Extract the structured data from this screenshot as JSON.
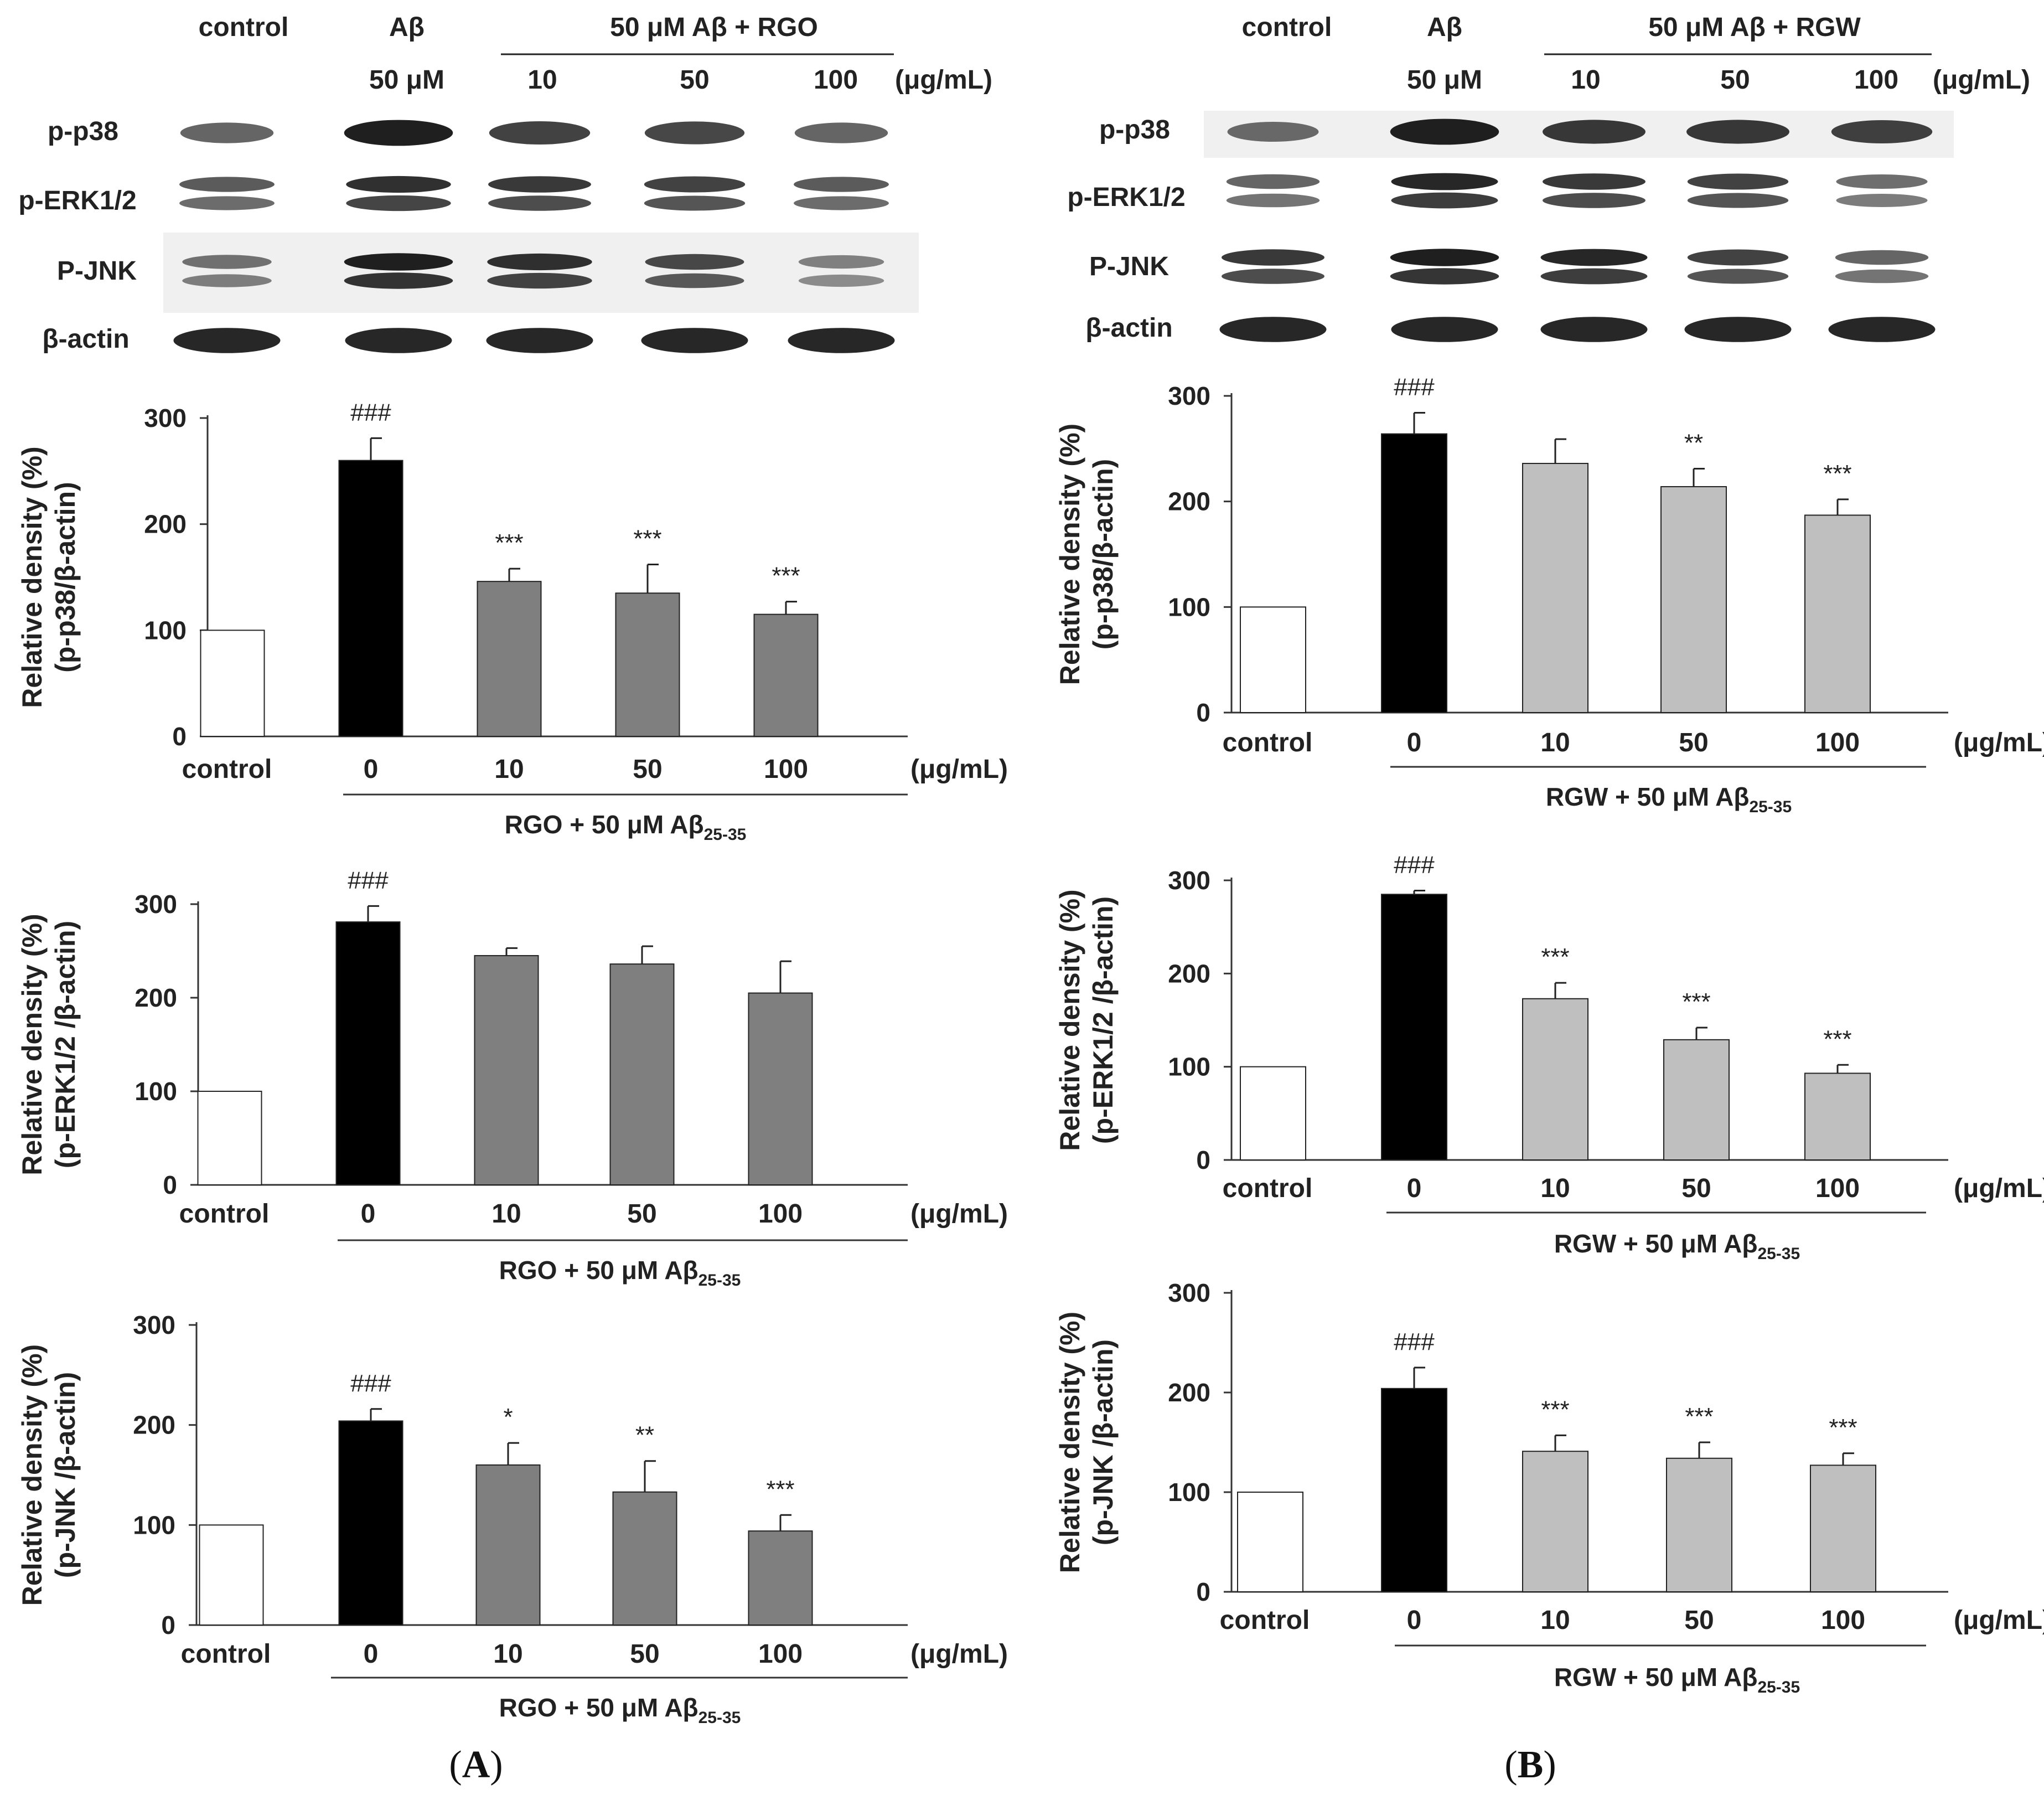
{
  "colors": {
    "control_fill": "#ffffff",
    "abeta_fill": "#000000",
    "rgo_fill": "#7f7f7f",
    "rgw_fill": "#bfbfbf",
    "bar_stroke": "#222222",
    "axis": "#333333",
    "blot_background": "#f0f0f0"
  },
  "panels": [
    {
      "id": "A",
      "label_letter": "A",
      "blot": {
        "header_control": "control",
        "header_abeta": "Aβ",
        "header_abeta_dose": "50 μM",
        "header_group": "50 μM  Aβ  + RGO",
        "header_doses": [
          "10",
          "50",
          "100"
        ],
        "header_unit": "(μg/mL)",
        "rows": [
          {
            "label": "p-p38",
            "intensity": [
              0.55,
              0.95,
              0.75,
              0.72,
              0.55
            ],
            "double": false,
            "shaded": false
          },
          {
            "label": "p-ERK1/2",
            "intensity": [
              0.6,
              0.85,
              0.8,
              0.75,
              0.6
            ],
            "double": true,
            "shaded": false
          },
          {
            "label": "P-JNK",
            "intensity": [
              0.45,
              0.95,
              0.85,
              0.7,
              0.35
            ],
            "double": true,
            "shaded": true
          },
          {
            "label": "β-actin",
            "intensity": [
              0.9,
              0.9,
              0.9,
              0.9,
              0.9
            ],
            "double": false,
            "shaded": false
          }
        ]
      }
    },
    {
      "id": "B",
      "label_letter": "B",
      "blot": {
        "header_control": "control",
        "header_abeta": "Aβ",
        "header_abeta_dose": "50 μM",
        "header_group": "50 μM  Aβ  + RGW",
        "header_doses": [
          "10",
          "50",
          "100"
        ],
        "header_unit": "(μg/mL)",
        "rows": [
          {
            "label": "p-p38",
            "intensity": [
              0.5,
              0.95,
              0.8,
              0.8,
              0.75
            ],
            "double": false,
            "shaded": true
          },
          {
            "label": "p-ERK1/2",
            "intensity": [
              0.55,
              0.9,
              0.8,
              0.75,
              0.5
            ],
            "double": true,
            "shaded": false
          },
          {
            "label": "P-JNK",
            "intensity": [
              0.8,
              0.95,
              0.9,
              0.75,
              0.55
            ],
            "double": true,
            "shaded": false
          },
          {
            "label": "β-actin",
            "intensity": [
              0.9,
              0.9,
              0.9,
              0.9,
              0.9
            ],
            "double": false,
            "shaded": false
          }
        ]
      }
    }
  ],
  "chart_data": [
    {
      "panel": "A",
      "type": "bar",
      "title": "",
      "ylabel_line1": "Relative density (%)",
      "ylabel_line2": "(p-p38/β-actin)",
      "categories": [
        "control",
        "0",
        "10",
        "50",
        "100"
      ],
      "unit_label": "(μg/mL)",
      "group_label": "RGO + 50 μM Aβ",
      "group_label_sub": "25-35",
      "values": [
        100,
        260,
        146,
        135,
        115
      ],
      "errors": [
        0,
        21,
        12,
        27,
        12
      ],
      "significance": [
        "",
        "###",
        "***",
        "***",
        "***"
      ],
      "ylim": [
        0,
        300
      ],
      "yticks": [
        0,
        100,
        200,
        300
      ],
      "treatment": "RGO"
    },
    {
      "panel": "A",
      "type": "bar",
      "title": "",
      "ylabel_line1": "Relative density (%)",
      "ylabel_line2": "(p-ERK1/2 /β-actin)",
      "categories": [
        "control",
        "0",
        "10",
        "50",
        "100"
      ],
      "unit_label": "(μg/mL)",
      "group_label": "RGO + 50 μM Aβ",
      "group_label_sub": "25-35",
      "values": [
        100,
        281,
        245,
        236,
        205
      ],
      "errors": [
        0,
        17,
        8,
        19,
        34
      ],
      "significance": [
        "",
        "###",
        "",
        "",
        ""
      ],
      "ylim": [
        0,
        300
      ],
      "yticks": [
        0,
        100,
        200,
        300
      ],
      "treatment": "RGO"
    },
    {
      "panel": "A",
      "type": "bar",
      "title": "",
      "ylabel_line1": "Relative density (%)",
      "ylabel_line2": "(p-JNK /β-actin)",
      "categories": [
        "control",
        "0",
        "10",
        "50",
        "100"
      ],
      "unit_label": "(μg/mL)",
      "group_label": "RGO + 50 μM Aβ",
      "group_label_sub": "25-35",
      "values": [
        100,
        204,
        160,
        133,
        94
      ],
      "errors": [
        0,
        12,
        22,
        31,
        16
      ],
      "significance": [
        "",
        "###",
        "*",
        "**",
        "***"
      ],
      "ylim": [
        0,
        300
      ],
      "yticks": [
        0,
        100,
        200,
        300
      ],
      "treatment": "RGO"
    },
    {
      "panel": "B",
      "type": "bar",
      "title": "",
      "ylabel_line1": "Relative density (%)",
      "ylabel_line2": "(p-p38/β-actin)",
      "categories": [
        "control",
        "0",
        "10",
        "50",
        "100"
      ],
      "unit_label": "(μg/mL)",
      "group_label": "RGW + 50 μM Aβ",
      "group_label_sub": "25-35",
      "values": [
        100,
        264,
        236,
        214,
        187
      ],
      "errors": [
        0,
        20,
        23,
        17,
        15
      ],
      "significance": [
        "",
        "###",
        "",
        "**",
        "***"
      ],
      "ylim": [
        0,
        300
      ],
      "yticks": [
        0,
        100,
        200,
        300
      ],
      "treatment": "RGW"
    },
    {
      "panel": "B",
      "type": "bar",
      "title": "",
      "ylabel_line1": "Relative density (%)",
      "ylabel_line2": "(p-ERK1/2 /β-actin)",
      "categories": [
        "control",
        "0",
        "10",
        "50",
        "100"
      ],
      "unit_label": "(μg/mL)",
      "group_label": "RGW + 50 μM Aβ",
      "group_label_sub": "25-35",
      "values": [
        100,
        285,
        173,
        129,
        93
      ],
      "errors": [
        0,
        4,
        17,
        13,
        9
      ],
      "significance": [
        "",
        "###",
        "***",
        "***",
        "***"
      ],
      "ylim": [
        0,
        300
      ],
      "yticks": [
        0,
        100,
        200,
        300
      ],
      "treatment": "RGW"
    },
    {
      "panel": "B",
      "type": "bar",
      "title": "",
      "ylabel_line1": "Relative density (%)",
      "ylabel_line2": "(p-JNK /β-actin)",
      "categories": [
        "control",
        "0",
        "10",
        "50",
        "100"
      ],
      "unit_label": "(μg/mL)",
      "group_label": "RGW + 50 μM Aβ",
      "group_label_sub": "25-35",
      "values": [
        100,
        204,
        141,
        134,
        127
      ],
      "errors": [
        0,
        21,
        16,
        16,
        12
      ],
      "significance": [
        "",
        "###",
        "***",
        "***",
        "***"
      ],
      "ylim": [
        0,
        300
      ],
      "yticks": [
        0,
        100,
        200,
        300
      ],
      "treatment": "RGW"
    }
  ]
}
